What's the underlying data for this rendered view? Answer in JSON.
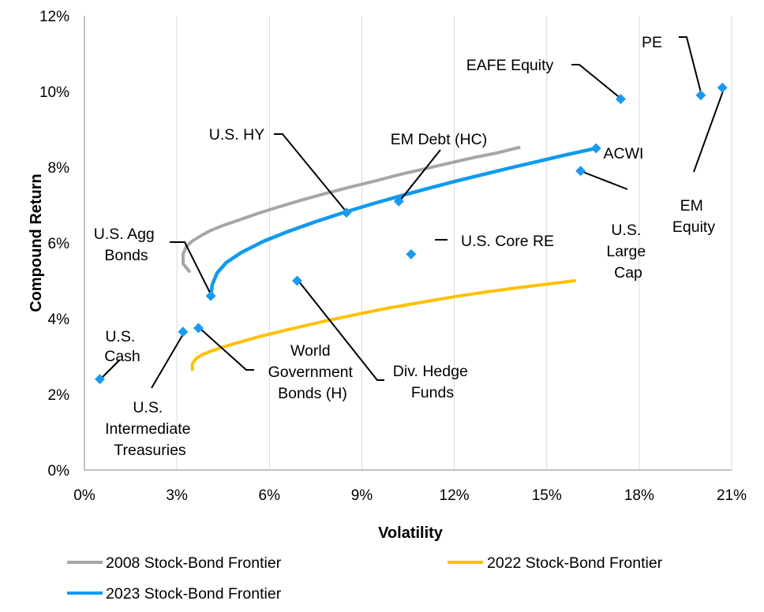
{
  "chart_data": {
    "type": "scatter",
    "xlabel": "Volatility",
    "ylabel": "Compound Return",
    "xlim": [
      0,
      21
    ],
    "ylim": [
      0,
      12
    ],
    "x_ticks": [
      "0%",
      "3%",
      "6%",
      "9%",
      "12%",
      "15%",
      "18%",
      "21%"
    ],
    "y_ticks": [
      "0%",
      "2%",
      "4%",
      "6%",
      "8%",
      "10%",
      "12%"
    ],
    "grid": "vertical",
    "legend_position": "bottom",
    "colors": {
      "frontier_2008": "#A6A6A6",
      "frontier_2022": "#FFC000",
      "frontier_2023": "#0F9AEE",
      "points": "#1A9AEE"
    },
    "series": [
      {
        "name": "2008 Stock-Bond Frontier",
        "x": [
          3.4,
          3.2,
          3.2,
          3.3,
          3.5,
          3.8,
          4.1,
          4.5,
          5.0,
          5.6,
          6.3,
          7.0,
          7.8,
          8.6,
          9.4,
          10.2,
          11.0,
          11.8,
          12.6,
          13.4,
          14.1
        ],
        "y": [
          5.25,
          5.45,
          5.7,
          5.9,
          6.05,
          6.2,
          6.33,
          6.46,
          6.6,
          6.77,
          6.95,
          7.12,
          7.3,
          7.47,
          7.63,
          7.8,
          7.95,
          8.1,
          8.25,
          8.38,
          8.52
        ]
      },
      {
        "name": "2022 Stock-Bond Frontier",
        "x": [
          3.5,
          3.5,
          3.6,
          3.8,
          4.1,
          4.5,
          5.0,
          5.7,
          6.4,
          7.2,
          8.0,
          9.0,
          10.0,
          11.0,
          12.0,
          13.0,
          14.0,
          15.0,
          15.9
        ],
        "y": [
          2.65,
          2.8,
          2.93,
          3.04,
          3.14,
          3.25,
          3.37,
          3.53,
          3.67,
          3.82,
          3.97,
          4.14,
          4.3,
          4.44,
          4.58,
          4.7,
          4.81,
          4.91,
          5.0
        ]
      },
      {
        "name": "2023 Stock-Bond Frontier",
        "x": [
          4.1,
          4.15,
          4.3,
          4.6,
          5.1,
          5.8,
          6.6,
          7.5,
          8.4,
          9.3,
          10.2,
          11.1,
          12.0,
          12.9,
          13.8,
          14.7,
          15.6,
          16.6
        ],
        "y": [
          4.6,
          4.9,
          5.2,
          5.48,
          5.75,
          6.04,
          6.3,
          6.56,
          6.8,
          7.02,
          7.23,
          7.43,
          7.62,
          7.8,
          7.98,
          8.15,
          8.32,
          8.5
        ]
      }
    ],
    "points": [
      {
        "label": "U.S. Cash",
        "x": 0.5,
        "y": 2.4
      },
      {
        "label": "U.S. Intermediate Treasuries",
        "x": 3.2,
        "y": 3.65
      },
      {
        "label": "World Government Bonds (H)",
        "x": 3.7,
        "y": 3.75
      },
      {
        "label": "U.S. Agg Bonds",
        "x": 4.1,
        "y": 4.6
      },
      {
        "label": "Div. Hedge Funds",
        "x": 6.9,
        "y": 5.0
      },
      {
        "label": "U.S. HY",
        "x": 8.5,
        "y": 6.8
      },
      {
        "label": "EM Debt (HC)",
        "x": 10.2,
        "y": 7.1
      },
      {
        "label": "U.S. Core RE",
        "x": 10.6,
        "y": 5.7
      },
      {
        "label": "U.S. Large Cap",
        "x": 16.1,
        "y": 7.9
      },
      {
        "label": "ACWI",
        "x": 16.6,
        "y": 8.5
      },
      {
        "label": "EAFE Equity",
        "x": 17.4,
        "y": 9.8
      },
      {
        "label": "PE",
        "x": 20.0,
        "y": 9.9
      },
      {
        "label": "EM Equity",
        "x": 20.7,
        "y": 10.1
      }
    ],
    "annotations": {
      "cash": [
        "U.S.",
        "Cash"
      ],
      "treasuries": [
        "U.S.",
        "Intermediate",
        "Treasuries"
      ],
      "wgb": [
        "World",
        "Government",
        "Bonds (H)"
      ],
      "agg": [
        "U.S. Agg",
        "Bonds"
      ],
      "hedge": [
        "Div. Hedge",
        "Funds"
      ],
      "hy": "U.S. HY",
      "emdebt": "EM Debt (HC)",
      "corere": "U.S. Core RE",
      "largecap": [
        "U.S.",
        "Large",
        "Cap"
      ],
      "acwi": "ACWI",
      "eafe": "EAFE Equity",
      "pe": "PE",
      "emeq": [
        "EM",
        "Equity"
      ]
    }
  }
}
